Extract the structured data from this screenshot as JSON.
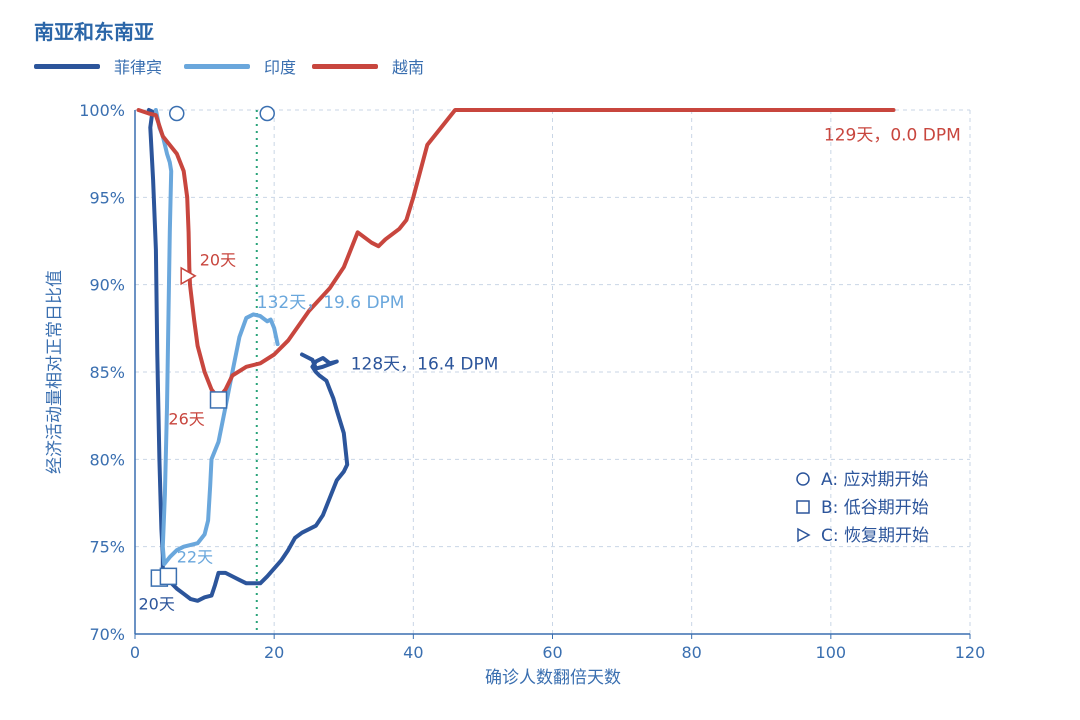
{
  "chart_data": {
    "type": "line",
    "title": "南亚和东南亚",
    "xlabel": "确诊人数翻倍天数",
    "ylabel": "经济活动量相对正常日比值",
    "xlim": [
      0,
      120
    ],
    "ylim": [
      0.7,
      1.0
    ],
    "x_ticks": [
      "0",
      "20",
      "40",
      "60",
      "80",
      "100",
      "120"
    ],
    "y_ticks": [
      "70%",
      "75%",
      "80%",
      "85%",
      "90%",
      "95%",
      "100%"
    ],
    "grid": true,
    "legend_position": "top-left",
    "vertical_reference_x": 17.5,
    "series": [
      {
        "name": "菲律宾",
        "color": "#2c559b",
        "points": [
          [
            2,
            1.0
          ],
          [
            2.5,
            0.999
          ],
          [
            2.2,
            0.99
          ],
          [
            2.6,
            0.96
          ],
          [
            3,
            0.92
          ],
          [
            3.2,
            0.86
          ],
          [
            3.5,
            0.8
          ],
          [
            3.8,
            0.76
          ],
          [
            4,
            0.745
          ],
          [
            4,
            0.735
          ],
          [
            5,
            0.73
          ],
          [
            6,
            0.726
          ],
          [
            7,
            0.723
          ],
          [
            8,
            0.72
          ],
          [
            9,
            0.719
          ],
          [
            10,
            0.721
          ],
          [
            11,
            0.722
          ],
          [
            11.5,
            0.728
          ],
          [
            12,
            0.735
          ],
          [
            13,
            0.735
          ],
          [
            14,
            0.733
          ],
          [
            15,
            0.731
          ],
          [
            16,
            0.729
          ],
          [
            18,
            0.729
          ],
          [
            19,
            0.733
          ],
          [
            21,
            0.742
          ],
          [
            22,
            0.748
          ],
          [
            23,
            0.755
          ],
          [
            24,
            0.758
          ],
          [
            25,
            0.76
          ],
          [
            26,
            0.762
          ],
          [
            27,
            0.768
          ],
          [
            28,
            0.778
          ],
          [
            29,
            0.788
          ],
          [
            30,
            0.793
          ],
          [
            30.5,
            0.797
          ],
          [
            30,
            0.815
          ],
          [
            29,
            0.828
          ],
          [
            28.5,
            0.835
          ],
          [
            28,
            0.84
          ],
          [
            27.5,
            0.845
          ],
          [
            26.5,
            0.848
          ],
          [
            26,
            0.85
          ],
          [
            25.5,
            0.853
          ],
          [
            26,
            0.856
          ],
          [
            27,
            0.858
          ],
          [
            28,
            0.855
          ],
          [
            29,
            0.856
          ],
          [
            27,
            0.853
          ],
          [
            26,
            0.852
          ],
          [
            25.5,
            0.857
          ],
          [
            24,
            0.86
          ]
        ],
        "end_label": "128天，16.4 DPM",
        "marker_labels": [
          "20天"
        ]
      },
      {
        "name": "印度",
        "color": "#6aa7dc",
        "points": [
          [
            3,
            1.0
          ],
          [
            3.5,
            0.99
          ],
          [
            4,
            0.985
          ],
          [
            4.3,
            0.98
          ],
          [
            4.6,
            0.975
          ],
          [
            5,
            0.97
          ],
          [
            5.2,
            0.965
          ],
          [
            5,
            0.93
          ],
          [
            4.8,
            0.88
          ],
          [
            4.6,
            0.83
          ],
          [
            4.3,
            0.78
          ],
          [
            4,
            0.75
          ],
          [
            4.2,
            0.74
          ],
          [
            5,
            0.744
          ],
          [
            6,
            0.748
          ],
          [
            7,
            0.75
          ],
          [
            8,
            0.751
          ],
          [
            9,
            0.752
          ],
          [
            10,
            0.757
          ],
          [
            10.5,
            0.765
          ],
          [
            10.8,
            0.785
          ],
          [
            11,
            0.8
          ],
          [
            12,
            0.81
          ],
          [
            13,
            0.83
          ],
          [
            14,
            0.85
          ],
          [
            15,
            0.87
          ],
          [
            16,
            0.881
          ],
          [
            17,
            0.883
          ],
          [
            18,
            0.882
          ],
          [
            19,
            0.879
          ],
          [
            19.5,
            0.88
          ],
          [
            20,
            0.875
          ],
          [
            20.5,
            0.866
          ]
        ],
        "end_label": "132天，19.6 DPM",
        "marker_labels": [
          "22天"
        ]
      },
      {
        "name": "越南",
        "color": "#c8463e",
        "points": [
          [
            0.5,
            1.0
          ],
          [
            2,
            0.998
          ],
          [
            3,
            0.997
          ],
          [
            4,
            0.985
          ],
          [
            6,
            0.975
          ],
          [
            7,
            0.965
          ],
          [
            7.5,
            0.95
          ],
          [
            7.7,
            0.93
          ],
          [
            7.8,
            0.91
          ],
          [
            7.9,
            0.9
          ],
          [
            8.5,
            0.88
          ],
          [
            9,
            0.865
          ],
          [
            10,
            0.85
          ],
          [
            11,
            0.84
          ],
          [
            12,
            0.835
          ],
          [
            13,
            0.84
          ],
          [
            14,
            0.848
          ],
          [
            16,
            0.853
          ],
          [
            18,
            0.855
          ],
          [
            20,
            0.86
          ],
          [
            22,
            0.868
          ],
          [
            25,
            0.885
          ],
          [
            28,
            0.898
          ],
          [
            30,
            0.91
          ],
          [
            32,
            0.93
          ],
          [
            34,
            0.924
          ],
          [
            35,
            0.922
          ],
          [
            36,
            0.926
          ],
          [
            38,
            0.932
          ],
          [
            39,
            0.937
          ],
          [
            40,
            0.95
          ],
          [
            41,
            0.965
          ],
          [
            42,
            0.98
          ],
          [
            44,
            0.99
          ],
          [
            46,
            1.0
          ],
          [
            47,
            1.0
          ],
          [
            80,
            1.0
          ],
          [
            100,
            1.0
          ],
          [
            109,
            1.0
          ]
        ],
        "end_label": "129天，0.0 DPM",
        "marker_labels": [
          "20天",
          "26天"
        ]
      }
    ],
    "annotations": {
      "phase_legend": [
        {
          "symbol": "circle",
          "label": "A: 应对期开始"
        },
        {
          "symbol": "square",
          "label": "B: 低谷期开始"
        },
        {
          "symbol": "triangle",
          "label": "C: 恢复期开始"
        }
      ],
      "markers": [
        {
          "symbol": "circle",
          "x": 6,
          "y": 0.998
        },
        {
          "symbol": "circle",
          "x": 19,
          "y": 0.998
        },
        {
          "symbol": "square",
          "x": 3.5,
          "y": 0.732
        },
        {
          "symbol": "square",
          "x": 4.8,
          "y": 0.733
        },
        {
          "symbol": "square",
          "x": 12,
          "y": 0.834
        },
        {
          "symbol": "triangle",
          "x": 7.5,
          "y": 0.905
        }
      ]
    }
  }
}
